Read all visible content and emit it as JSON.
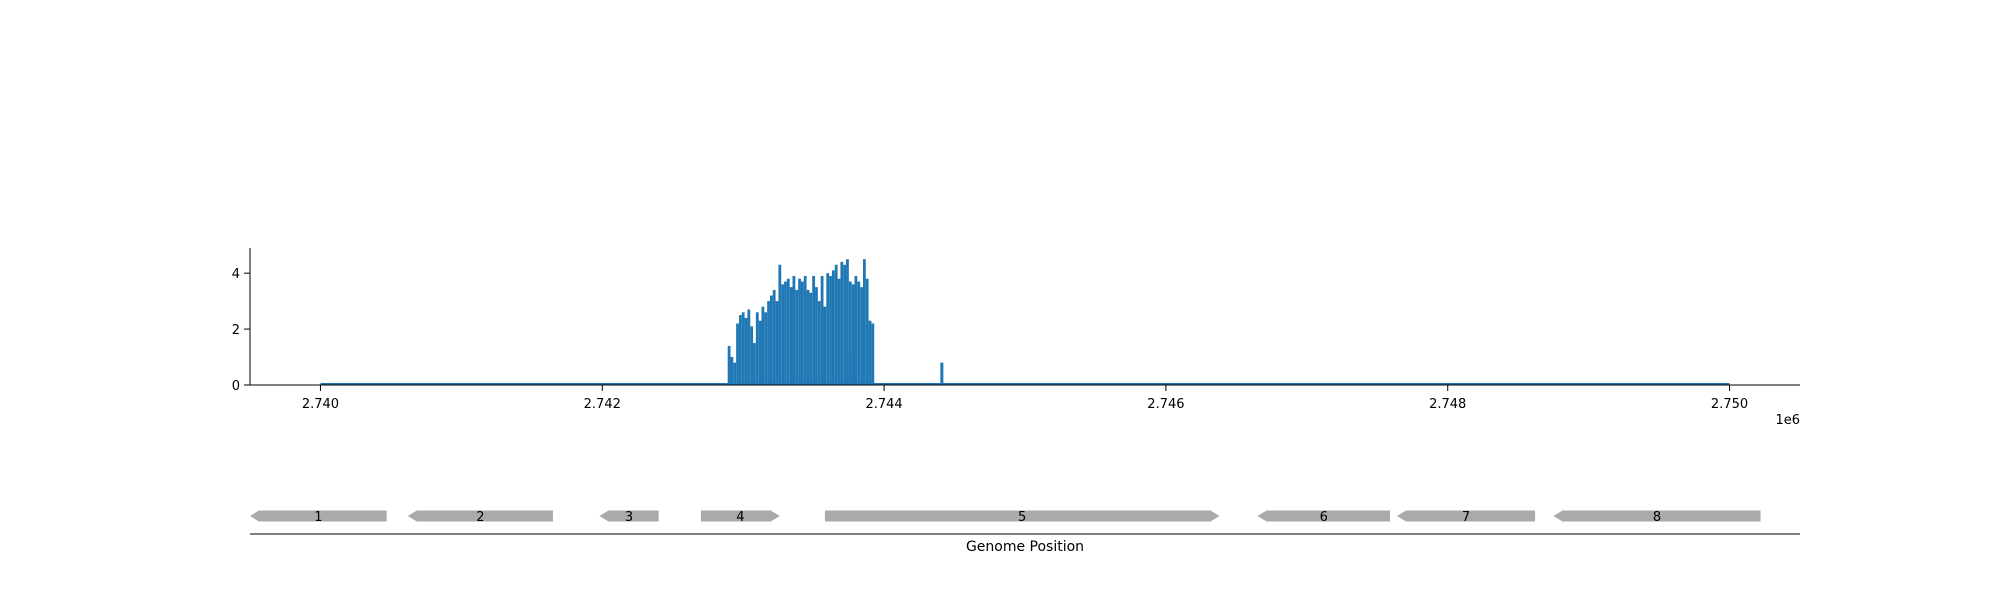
{
  "chart_data": [
    {
      "type": "bar",
      "title": "",
      "xlabel": "",
      "ylabel": "",
      "x_offset_label": "1e6",
      "xlim": [
        2.7395,
        2.7505
      ],
      "ylim": [
        0,
        4.9
      ],
      "grid": false,
      "color": "#1f77b4",
      "x_ticks": [
        2.74,
        2.742,
        2.744,
        2.746,
        2.748,
        2.75
      ],
      "x_tick_labels": [
        "2.740",
        "2.742",
        "2.744",
        "2.746",
        "2.748",
        "2.750"
      ],
      "y_ticks": [
        0,
        2,
        4
      ],
      "y_tick_labels": [
        "0",
        "2",
        "4"
      ],
      "baseline_range": [
        2.74,
        2.75
      ],
      "x": [
        2.7429,
        2.74292,
        2.74294,
        2.74296,
        2.74298,
        2.743,
        2.74302,
        2.74304,
        2.74306,
        2.74308,
        2.7431,
        2.74312,
        2.74314,
        2.74316,
        2.74318,
        2.7432,
        2.74322,
        2.74324,
        2.74326,
        2.74328,
        2.7433,
        2.74332,
        2.74334,
        2.74336,
        2.74338,
        2.7434,
        2.74342,
        2.74344,
        2.74346,
        2.74348,
        2.7435,
        2.74352,
        2.74354,
        2.74356,
        2.74358,
        2.7436,
        2.74362,
        2.74364,
        2.74366,
        2.74368,
        2.7437,
        2.74372,
        2.74374,
        2.74376,
        2.74378,
        2.7438,
        2.74382,
        2.74384,
        2.74386,
        2.74388,
        2.7439,
        2.74392,
        2.74394,
        2.74396,
        2.74398,
        2.744,
        2.74402,
        2.74404,
        2.74406,
        2.74408,
        2.7441,
        2.74412,
        2.74414,
        2.74416,
        2.74418,
        2.7442,
        2.74422,
        2.74424,
        2.74426,
        2.74428,
        2.7443,
        2.74432,
        2.74434,
        2.74436,
        2.74438,
        2.7444,
        2.74442,
        2.74444,
        2.74446,
        2.74376,
        2.74441
      ],
      "values": [
        1.4,
        1.0,
        0.8,
        2.2,
        2.5,
        2.6,
        2.4,
        2.7,
        2.1,
        1.5,
        2.6,
        2.3,
        2.8,
        2.6,
        3.0,
        3.2,
        3.4,
        3.0,
        4.3,
        3.6,
        3.7,
        3.8,
        3.5,
        3.9,
        3.4,
        3.8,
        3.7,
        3.9,
        3.4,
        3.3,
        3.9,
        3.5,
        3.0,
        3.9,
        2.8,
        4.0,
        3.9,
        4.1,
        4.3,
        3.8,
        4.4,
        4.3,
        4.5,
        3.7,
        3.6,
        3.9,
        3.7,
        3.5,
        4.5,
        3.8,
        2.3,
        2.2,
        0,
        0,
        0,
        0,
        0,
        0,
        0,
        0,
        0,
        0,
        0,
        0,
        0,
        0,
        0,
        0,
        0,
        0,
        0,
        0,
        0,
        0,
        0,
        0,
        0,
        0,
        0,
        1.15,
        0.8
      ]
    },
    {
      "type": "gene-track",
      "xlabel": "Genome Position",
      "color": "#aaaaaa",
      "genes": [
        {
          "label": "1",
          "start": 2.7395,
          "end": 2.74047,
          "strand": "-"
        },
        {
          "label": "2",
          "start": 2.74062,
          "end": 2.74165,
          "strand": "-"
        },
        {
          "label": "3",
          "start": 2.74198,
          "end": 2.7424,
          "strand": "-"
        },
        {
          "label": "4",
          "start": 2.7427,
          "end": 2.74326,
          "strand": "+"
        },
        {
          "label": "5",
          "start": 2.74358,
          "end": 2.74638,
          "strand": "+"
        },
        {
          "label": "6",
          "start": 2.74665,
          "end": 2.74759,
          "strand": "-"
        },
        {
          "label": "7",
          "start": 2.74764,
          "end": 2.74862,
          "strand": "-"
        },
        {
          "label": "8",
          "start": 2.74875,
          "end": 2.75022,
          "strand": "-"
        }
      ]
    }
  ]
}
